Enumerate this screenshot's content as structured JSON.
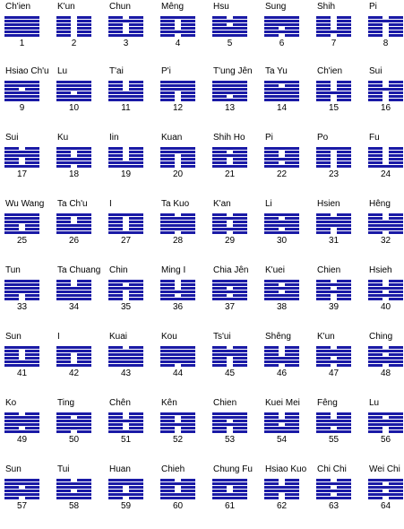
{
  "colors": {
    "line": "#1a1aa6"
  },
  "hexagrams": [
    {
      "n": 1,
      "name": "Ch'ien",
      "lines": "111111"
    },
    {
      "n": 2,
      "name": "K'un",
      "lines": "000000"
    },
    {
      "n": 3,
      "name": "Chun",
      "lines": "010001"
    },
    {
      "n": 4,
      "name": "Mêng",
      "lines": "100010"
    },
    {
      "n": 5,
      "name": "Hsu",
      "lines": "010111"
    },
    {
      "n": 6,
      "name": "Sung",
      "lines": "111010"
    },
    {
      "n": 7,
      "name": "Shih",
      "lines": "000010"
    },
    {
      "n": 8,
      "name": "Pi",
      "lines": "010000"
    },
    {
      "n": 9,
      "name": "Hsiao Ch'u",
      "lines": "110111"
    },
    {
      "n": 10,
      "name": "Lu",
      "lines": "111011"
    },
    {
      "n": 11,
      "name": "T'ai",
      "lines": "000111"
    },
    {
      "n": 12,
      "name": "P'i",
      "lines": "111000"
    },
    {
      "n": 13,
      "name": "T'ung Jên",
      "lines": "111101"
    },
    {
      "n": 14,
      "name": "Ta Yu",
      "lines": "101111"
    },
    {
      "n": 15,
      "name": "Ch'ien",
      "lines": "000100"
    },
    {
      "n": 16,
      "name": "Sui",
      "lines": "001000"
    },
    {
      "n": 17,
      "name": "Sui",
      "lines": "011001"
    },
    {
      "n": 18,
      "name": "Ku",
      "lines": "100110"
    },
    {
      "n": 19,
      "name": "Iin",
      "lines": "000011"
    },
    {
      "n": 20,
      "name": "Kuan",
      "lines": "110000"
    },
    {
      "n": 21,
      "name": "Shih Ho",
      "lines": "101001"
    },
    {
      "n": 22,
      "name": "Pi",
      "lines": "100101"
    },
    {
      "n": 23,
      "name": "Po",
      "lines": "100000"
    },
    {
      "n": 24,
      "name": "Fu",
      "lines": "000001"
    },
    {
      "n": 25,
      "name": "Wu Wang",
      "lines": "111001"
    },
    {
      "n": 26,
      "name": "Ta Ch'u",
      "lines": "100111"
    },
    {
      "n": 27,
      "name": "I",
      "lines": "100001"
    },
    {
      "n": 28,
      "name": "Ta Kuo",
      "lines": "011110"
    },
    {
      "n": 29,
      "name": "K'an",
      "lines": "010010"
    },
    {
      "n": 30,
      "name": "Li",
      "lines": "101101"
    },
    {
      "n": 31,
      "name": "Hsien",
      "lines": "011100"
    },
    {
      "n": 32,
      "name": "Hêng",
      "lines": "001110"
    },
    {
      "n": 33,
      "name": "Tun",
      "lines": "111100"
    },
    {
      "n": 34,
      "name": "Ta Chuang",
      "lines": "001111"
    },
    {
      "n": 35,
      "name": "Chin",
      "lines": "101000"
    },
    {
      "n": 36,
      "name": "Ming I",
      "lines": "000101"
    },
    {
      "n": 37,
      "name": "Chia Jên",
      "lines": "110101"
    },
    {
      "n": 38,
      "name": "K'uei",
      "lines": "101011"
    },
    {
      "n": 39,
      "name": "Chien",
      "lines": "010100"
    },
    {
      "n": 40,
      "name": "Hsieh",
      "lines": "001010"
    },
    {
      "n": 41,
      "name": "Sun",
      "lines": "100011"
    },
    {
      "n": 42,
      "name": "I",
      "lines": "110001"
    },
    {
      "n": 43,
      "name": "Kuai",
      "lines": "011111"
    },
    {
      "n": 44,
      "name": "Kou",
      "lines": "111110"
    },
    {
      "n": 45,
      "name": "Ts'ui",
      "lines": "011000"
    },
    {
      "n": 46,
      "name": "Shêng",
      "lines": "000110"
    },
    {
      "n": 47,
      "name": "K'un",
      "lines": "011010"
    },
    {
      "n": 48,
      "name": "Ching",
      "lines": "010110"
    },
    {
      "n": 49,
      "name": "Ko",
      "lines": "011101"
    },
    {
      "n": 50,
      "name": "Ting",
      "lines": "101110"
    },
    {
      "n": 51,
      "name": "Chên",
      "lines": "001001"
    },
    {
      "n": 52,
      "name": "Kên",
      "lines": "100100"
    },
    {
      "n": 53,
      "name": "Chien",
      "lines": "110100"
    },
    {
      "n": 54,
      "name": "Kuei Mei",
      "lines": "001011"
    },
    {
      "n": 55,
      "name": "Fêng",
      "lines": "001101"
    },
    {
      "n": 56,
      "name": "Lu",
      "lines": "101100"
    },
    {
      "n": 57,
      "name": "Sun",
      "lines": "110110"
    },
    {
      "n": 58,
      "name": "Tui",
      "lines": "011011"
    },
    {
      "n": 59,
      "name": "Huan",
      "lines": "110010"
    },
    {
      "n": 60,
      "name": "Chieh",
      "lines": "010011"
    },
    {
      "n": 61,
      "name": "Chung Fu",
      "lines": "110011"
    },
    {
      "n": 62,
      "name": "Hsiao Kuo",
      "lines": "001100"
    },
    {
      "n": 63,
      "name": "Chi Chi",
      "lines": "010101"
    },
    {
      "n": 64,
      "name": "Wei Chi",
      "lines": "101010"
    }
  ]
}
